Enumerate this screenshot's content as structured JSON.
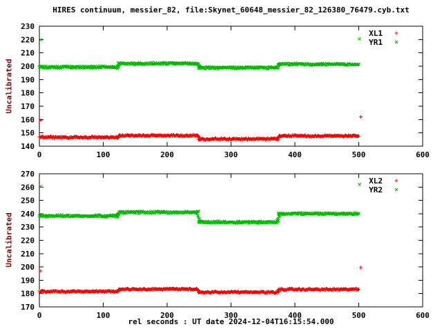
{
  "title": "HIRES continuum, messier_82, file:Skynet_60648_messier_82_126380_76479.cyb.txt",
  "xlabel": "rel seconds : UT date 2024-12-04T16:15:54.000",
  "colors": {
    "foreground": "#000000",
    "background": "#ffffff",
    "red": "#ff0000",
    "green": "#00bb00",
    "axis_label": "#8b0000"
  },
  "chart_data": [
    {
      "type": "scatter",
      "ylabel": "Uncalibrated",
      "xlim": [
        0,
        600
      ],
      "ylim": [
        140,
        230
      ],
      "xticks": [
        0,
        100,
        200,
        300,
        400,
        500,
        600
      ],
      "yticks": [
        140,
        150,
        160,
        170,
        180,
        190,
        200,
        210,
        220,
        230
      ],
      "grid": false,
      "legend_position": "top-right",
      "series": [
        {
          "name": "XL1",
          "marker": "plus",
          "color": "#ff0000",
          "band_halfwidth": 0.8,
          "segments": [
            {
              "x": [
                0,
                124
              ],
              "y": 146.7
            },
            {
              "x": [
                124,
                249
              ],
              "y": 148.0
            },
            {
              "x": [
                249,
                374
              ],
              "y": 145.4
            },
            {
              "x": [
                374,
                500
              ],
              "y": 147.7
            }
          ],
          "outliers": [
            [
              2,
              159.5
            ],
            [
              503,
              162
            ]
          ]
        },
        {
          "name": "YR1",
          "marker": "cross",
          "color": "#00bb00",
          "band_halfwidth": 1.0,
          "segments": [
            {
              "x": [
                0,
                124
              ],
              "y": 199.3
            },
            {
              "x": [
                124,
                249
              ],
              "y": 201.9
            },
            {
              "x": [
                249,
                374
              ],
              "y": 198.8
            },
            {
              "x": [
                374,
                500
              ],
              "y": 201.4
            }
          ],
          "outliers": [
            [
              2,
              220
            ],
            [
              501,
              220.5
            ]
          ]
        }
      ]
    },
    {
      "type": "scatter",
      "ylabel": "Uncalibrated",
      "xlim": [
        0,
        600
      ],
      "ylim": [
        170,
        270
      ],
      "xticks": [
        0,
        100,
        200,
        300,
        400,
        500,
        600
      ],
      "yticks": [
        170,
        180,
        190,
        200,
        210,
        220,
        230,
        240,
        250,
        260,
        270
      ],
      "grid": false,
      "legend_position": "top-right",
      "series": [
        {
          "name": "XL2",
          "marker": "plus",
          "color": "#ff0000",
          "band_halfwidth": 0.8,
          "segments": [
            {
              "x": [
                0,
                124
              ],
              "y": 181.6
            },
            {
              "x": [
                124,
                249
              ],
              "y": 183.3
            },
            {
              "x": [
                249,
                374
              ],
              "y": 181.0
            },
            {
              "x": [
                374,
                500
              ],
              "y": 183.1
            }
          ],
          "outliers": [
            [
              2,
              197
            ],
            [
              503,
              199.5
            ]
          ]
        },
        {
          "name": "YR2",
          "marker": "cross",
          "color": "#00bb00",
          "band_halfwidth": 1.0,
          "segments": [
            {
              "x": [
                0,
                124
              ],
              "y": 238.3
            },
            {
              "x": [
                124,
                249
              ],
              "y": 241.0
            },
            {
              "x": [
                249,
                374
              ],
              "y": 233.6
            },
            {
              "x": [
                374,
                500
              ],
              "y": 239.9
            }
          ],
          "outliers": [
            [
              2,
              260.5
            ],
            [
              501,
              262
            ]
          ]
        }
      ]
    }
  ]
}
